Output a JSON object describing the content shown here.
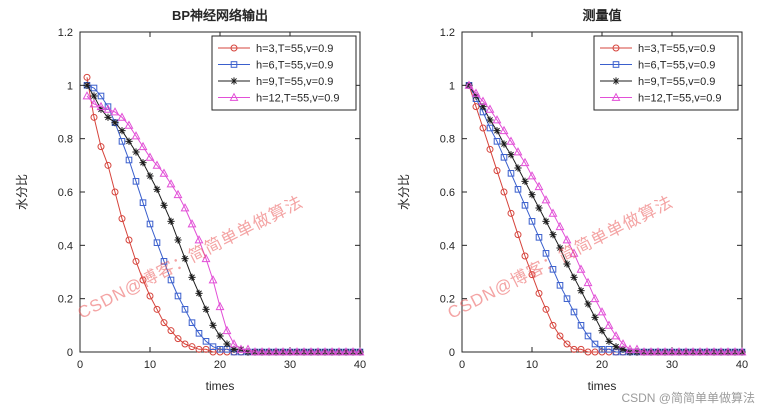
{
  "figure": {
    "background": "#ffffff"
  },
  "watermarks": {
    "diagonal": "CSDN@博客：简简单单做算法",
    "corner": "CSDN @简简单单做算法"
  },
  "chart_data": [
    {
      "type": "line",
      "title": "BP神经网络输出",
      "xlabel": "times",
      "ylabel": "水分比",
      "xlim": [
        0,
        40
      ],
      "ylim": [
        0,
        1.2
      ],
      "xticks": [
        0,
        10,
        20,
        30,
        40
      ],
      "xtick_labels": [
        "0",
        "10",
        "20",
        "30",
        "40"
      ],
      "yticks": [
        0,
        0.2,
        0.4,
        0.6,
        0.8,
        1,
        1.2
      ],
      "ytick_labels": [
        "0",
        "0.2",
        "0.4",
        "0.6",
        "0.8",
        "1",
        "1.2"
      ],
      "grid": false,
      "legend_position": "top-right",
      "x": [
        1,
        2,
        3,
        4,
        5,
        6,
        7,
        8,
        9,
        10,
        11,
        12,
        13,
        14,
        15,
        16,
        17,
        18,
        19,
        20,
        21,
        22,
        23,
        24,
        25,
        26,
        27,
        28,
        29,
        30,
        31,
        32,
        33,
        34,
        35,
        36,
        37,
        38,
        39,
        40
      ],
      "series": [
        {
          "name": "h=3,T=55,v=0.9",
          "color": "#d6443c",
          "marker": "circle",
          "values": [
            1.03,
            0.88,
            0.77,
            0.7,
            0.6,
            0.5,
            0.42,
            0.34,
            0.27,
            0.21,
            0.16,
            0.11,
            0.08,
            0.05,
            0.03,
            0.02,
            0.01,
            0.01,
            0.0,
            0.0,
            0,
            0,
            0,
            0,
            0,
            0,
            0,
            0,
            0,
            0,
            0,
            0,
            0,
            0,
            0,
            0,
            0,
            0,
            0,
            0
          ]
        },
        {
          "name": "h=6,T=55,v=0.9",
          "color": "#3a5fcd",
          "marker": "square",
          "values": [
            1.0,
            0.99,
            0.96,
            0.92,
            0.86,
            0.79,
            0.72,
            0.64,
            0.56,
            0.48,
            0.41,
            0.34,
            0.27,
            0.21,
            0.16,
            0.11,
            0.07,
            0.04,
            0.02,
            0.01,
            0.01,
            0,
            0,
            0,
            0,
            0,
            0,
            0,
            0,
            0,
            0,
            0,
            0,
            0,
            0,
            0,
            0,
            0,
            0,
            0
          ]
        },
        {
          "name": "h=9,T=55,v=0.9",
          "color": "#1c1c1c",
          "marker": "asterisk",
          "values": [
            1.0,
            0.96,
            0.91,
            0.88,
            0.86,
            0.83,
            0.79,
            0.75,
            0.71,
            0.66,
            0.61,
            0.55,
            0.49,
            0.42,
            0.35,
            0.28,
            0.22,
            0.16,
            0.1,
            0.06,
            0.03,
            0.01,
            0.01,
            0,
            0,
            0,
            0,
            0,
            0,
            0,
            0,
            0,
            0,
            0,
            0,
            0,
            0,
            0,
            0,
            0
          ]
        },
        {
          "name": "h=12,T=55,v=0.9",
          "color": "#e24fd7",
          "marker": "triangle-up",
          "values": [
            0.96,
            0.93,
            0.92,
            0.91,
            0.9,
            0.88,
            0.85,
            0.81,
            0.77,
            0.73,
            0.7,
            0.67,
            0.63,
            0.59,
            0.54,
            0.48,
            0.42,
            0.35,
            0.27,
            0.17,
            0.08,
            0.03,
            0.01,
            0.01,
            0,
            0,
            0,
            0,
            0,
            0,
            0,
            0,
            0,
            0,
            0,
            0,
            0,
            0,
            0,
            0
          ]
        }
      ]
    },
    {
      "type": "line",
      "title": "测量值",
      "xlabel": "times",
      "ylabel": "水分比",
      "xlim": [
        0,
        40
      ],
      "ylim": [
        0,
        1.2
      ],
      "xticks": [
        0,
        10,
        20,
        30,
        40
      ],
      "xtick_labels": [
        "0",
        "10",
        "20",
        "30",
        "40"
      ],
      "yticks": [
        0,
        0.2,
        0.4,
        0.6,
        0.8,
        1,
        1.2
      ],
      "ytick_labels": [
        "0",
        "0.2",
        "0.4",
        "0.6",
        "0.8",
        "1",
        "1.2"
      ],
      "grid": false,
      "legend_position": "top-right",
      "x": [
        1,
        2,
        3,
        4,
        5,
        6,
        7,
        8,
        9,
        10,
        11,
        12,
        13,
        14,
        15,
        16,
        17,
        18,
        19,
        20,
        21,
        22,
        23,
        24,
        25,
        26,
        27,
        28,
        29,
        30,
        31,
        32,
        33,
        34,
        35,
        36,
        37,
        38,
        39,
        40
      ],
      "series": [
        {
          "name": "h=3,T=55,v=0.9",
          "color": "#d6443c",
          "marker": "circle",
          "values": [
            1.0,
            0.92,
            0.84,
            0.76,
            0.68,
            0.6,
            0.52,
            0.44,
            0.36,
            0.29,
            0.22,
            0.16,
            0.1,
            0.06,
            0.03,
            0.01,
            0.01,
            0,
            0,
            0,
            0,
            0,
            0,
            0,
            0,
            0,
            0,
            0,
            0,
            0,
            0,
            0,
            0,
            0,
            0,
            0,
            0,
            0,
            0,
            0
          ]
        },
        {
          "name": "h=6,T=55,v=0.9",
          "color": "#3a5fcd",
          "marker": "square",
          "values": [
            1.0,
            0.95,
            0.9,
            0.84,
            0.79,
            0.73,
            0.67,
            0.61,
            0.55,
            0.49,
            0.43,
            0.37,
            0.31,
            0.25,
            0.2,
            0.15,
            0.1,
            0.06,
            0.03,
            0.01,
            0.01,
            0,
            0,
            0,
            0,
            0,
            0,
            0,
            0,
            0,
            0,
            0,
            0,
            0,
            0,
            0,
            0,
            0,
            0,
            0
          ]
        },
        {
          "name": "h=9,T=55,v=0.9",
          "color": "#1c1c1c",
          "marker": "asterisk",
          "values": [
            1.0,
            0.96,
            0.92,
            0.87,
            0.83,
            0.78,
            0.74,
            0.69,
            0.64,
            0.59,
            0.54,
            0.49,
            0.44,
            0.39,
            0.33,
            0.28,
            0.23,
            0.18,
            0.13,
            0.08,
            0.04,
            0.02,
            0.01,
            0,
            0,
            0,
            0,
            0,
            0,
            0,
            0,
            0,
            0,
            0,
            0,
            0,
            0,
            0,
            0,
            0
          ]
        },
        {
          "name": "h=12,T=55,v=0.9",
          "color": "#e24fd7",
          "marker": "triangle-up",
          "values": [
            1.0,
            0.97,
            0.94,
            0.91,
            0.87,
            0.83,
            0.79,
            0.75,
            0.71,
            0.66,
            0.62,
            0.57,
            0.52,
            0.47,
            0.42,
            0.37,
            0.31,
            0.26,
            0.2,
            0.15,
            0.1,
            0.06,
            0.03,
            0.01,
            0.01,
            0,
            0,
            0,
            0,
            0,
            0,
            0,
            0,
            0,
            0,
            0,
            0,
            0,
            0,
            0
          ]
        }
      ]
    }
  ]
}
